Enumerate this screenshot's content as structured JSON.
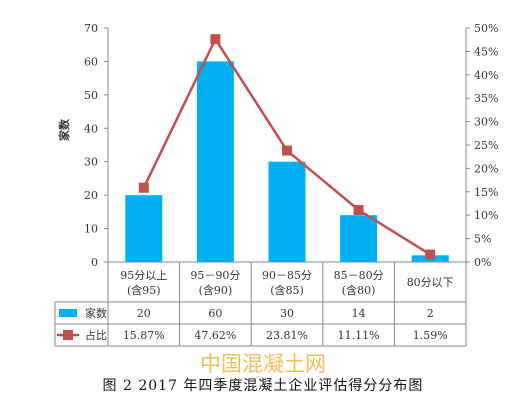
{
  "chart_data": {
    "type": "bar",
    "categories": [
      [
        "95分以上",
        "(含95)"
      ],
      [
        "95－90分",
        "(含90)"
      ],
      [
        "90－85分",
        "(含85)"
      ],
      [
        "85－80分",
        "(含80)"
      ],
      [
        "80分以下"
      ]
    ],
    "ylabel": "家数",
    "ylim": [
      0,
      70
    ],
    "yticks": [
      "0",
      "10",
      "20",
      "30",
      "40",
      "50",
      "60",
      "70"
    ],
    "y2lim": [
      0,
      50
    ],
    "y2ticks": [
      "0%",
      "5%",
      "10%",
      "15%",
      "20%",
      "25%",
      "30%",
      "35%",
      "40%",
      "45%",
      "50%"
    ],
    "series": [
      {
        "name": "家数",
        "type": "bar",
        "axis": "left",
        "values": [
          20,
          60,
          30,
          14,
          2
        ],
        "labels": [
          "20",
          "60",
          "30",
          "14",
          "2"
        ],
        "color": "#00b0f0"
      },
      {
        "name": "占比",
        "type": "line",
        "axis": "right",
        "values": [
          15.87,
          47.62,
          23.81,
          11.11,
          1.59
        ],
        "labels": [
          "15.87%",
          "47.62%",
          "23.81%",
          "11.11%",
          "1.59%"
        ],
        "color": "#c0504d"
      }
    ],
    "data_table": true,
    "grid": false
  },
  "watermark": "中国混凝土网",
  "caption": "图 2  2017 年四季度混凝土企业评估得分分布图"
}
